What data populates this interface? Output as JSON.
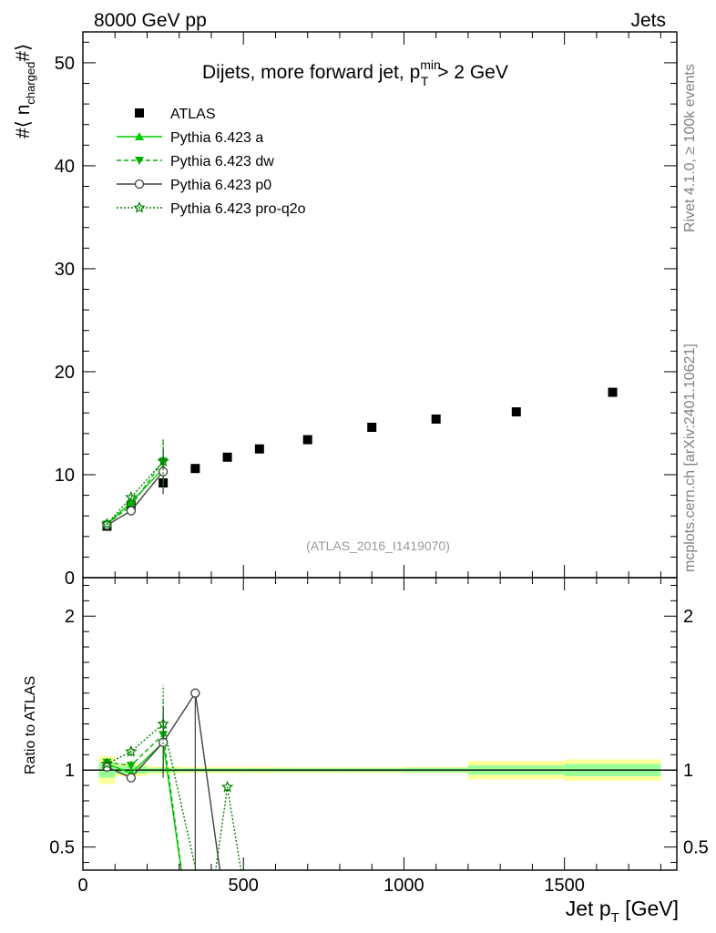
{
  "header": {
    "energy_label": "8000 GeV pp",
    "category_label": "Jets"
  },
  "side_labels": {
    "rivet": "Rivet 4.1.0, ≥ 100k events",
    "source": "mcplots.cern.ch [arXiv:2401.10621]"
  },
  "colors": {
    "atlas": "#000000",
    "pythia_a": "#00cc00",
    "pythia_dw": "#00b000",
    "pythia_p0": "#404040",
    "pythia_proq2o": "#008000",
    "band_inner": "#99ff99",
    "band_outer": "#ffff99"
  },
  "chart_data": [
    {
      "type": "scatter",
      "panel": "main",
      "title": "Dijets, more forward jet, p_T^min > 2 GeV",
      "title_parts": {
        "main": "Dijets, more forward jet, p",
        "sup": "min",
        "sub": "T",
        "tail": " > 2 GeV"
      },
      "ylabel_parts": {
        "pre": "#⟨ n",
        "sub": "charged",
        "post": "#⟩"
      },
      "xlim": [
        0,
        1850
      ],
      "ylim": [
        0,
        53
      ],
      "yticks": [
        0,
        10,
        20,
        30,
        40,
        50
      ],
      "ytick_labels": [
        "0",
        "10",
        "20",
        "30",
        "40",
        "50"
      ],
      "legend_position": "top-left",
      "reference_label": "(ATLAS_2016_I1419070)",
      "series": [
        {
          "name": "ATLAS",
          "legend": "ATLAS",
          "marker": "square",
          "x": [
            75,
            150,
            250,
            350,
            450,
            550,
            700,
            900,
            1100,
            1350,
            1650
          ],
          "y": [
            5.0,
            7.0,
            9.2,
            10.6,
            11.7,
            12.5,
            13.4,
            14.6,
            15.4,
            16.1,
            18.0
          ]
        },
        {
          "name": "Pythia 6.423 a",
          "legend": "Pythia 6.423 a",
          "marker": "triangle-up",
          "line": "solid",
          "x": [
            75,
            150,
            250
          ],
          "y": [
            5.2,
            7.3,
            10.6
          ],
          "err": [
            0.1,
            0.2,
            1.8
          ]
        },
        {
          "name": "Pythia 6.423 dw",
          "legend": "Pythia 6.423 dw",
          "marker": "triangle-down",
          "line": "dashed",
          "x": [
            75,
            150,
            250
          ],
          "y": [
            5.2,
            7.0,
            11.3
          ],
          "err": [
            0.1,
            0.2,
            2.0
          ]
        },
        {
          "name": "Pythia 6.423 p0",
          "legend": "Pythia 6.423 p0",
          "marker": "circle-open",
          "line": "solid",
          "x": [
            75,
            150,
            250
          ],
          "y": [
            5.1,
            6.5,
            10.3
          ],
          "err": [
            0.1,
            0.2,
            2.2
          ]
        },
        {
          "name": "Pythia 6.423 pro-q2o",
          "legend": "Pythia 6.423 pro-q2o",
          "marker": "star",
          "line": "dotted",
          "x": [
            75,
            150,
            250
          ],
          "y": [
            5.2,
            7.8,
            11.3
          ],
          "err": [
            0.1,
            0.2,
            2.3
          ]
        }
      ]
    },
    {
      "type": "line",
      "panel": "ratio",
      "ylabel": "Ratio to ATLAS",
      "xlabel_parts": {
        "main": "Jet p",
        "sub": "T",
        "tail": " [GeV]"
      },
      "xlim": [
        0,
        1850
      ],
      "ylim": [
        0.35,
        2.25
      ],
      "xticks": [
        0,
        500,
        1000,
        1500
      ],
      "xtick_labels": [
        "0",
        "500",
        "1000",
        "1500"
      ],
      "yticks": [
        0.5,
        1,
        2
      ],
      "ytick_labels": [
        "0.5",
        "1",
        "2"
      ],
      "reference_band": {
        "x_edges": [
          50,
          100,
          200,
          300,
          400,
          500,
          600,
          800,
          1000,
          1200,
          1500,
          1800
        ],
        "inner": [
          0.05,
          0.025,
          0.015,
          0.012,
          0.012,
          0.012,
          0.012,
          0.012,
          0.015,
          0.03,
          0.04
        ],
        "outer": [
          0.09,
          0.04,
          0.025,
          0.02,
          0.02,
          0.02,
          0.018,
          0.018,
          0.02,
          0.06,
          0.07
        ]
      },
      "series": [
        {
          "name": "Pythia 6.423 a",
          "x": [
            75,
            150,
            250,
            330
          ],
          "y": [
            1.04,
            0.98,
            1.18,
            0.0
          ],
          "err": [
            0.02,
            0.03,
            0.2,
            0.0
          ]
        },
        {
          "name": "Pythia 6.423 dw",
          "x": [
            75,
            150,
            250,
            330
          ],
          "y": [
            1.05,
            1.03,
            1.23,
            0.0
          ],
          "err": [
            0.02,
            0.03,
            0.22,
            0.0
          ]
        },
        {
          "name": "Pythia 6.423 p0",
          "x": [
            75,
            150,
            250,
            350,
            450
          ],
          "y": [
            1.02,
            0.95,
            1.18,
            1.5,
            0.0
          ],
          "err": [
            0.02,
            0.03,
            0.23,
            0.0,
            0.0
          ]
        },
        {
          "name": "Pythia 6.423 pro-q2o",
          "x": [
            75,
            150,
            250,
            390,
            450,
            520
          ],
          "y": [
            1.04,
            1.12,
            1.3,
            0.0,
            0.89,
            0.0
          ],
          "err": [
            0.02,
            0.03,
            0.25,
            0.0,
            0.0,
            0.0
          ]
        }
      ]
    }
  ]
}
